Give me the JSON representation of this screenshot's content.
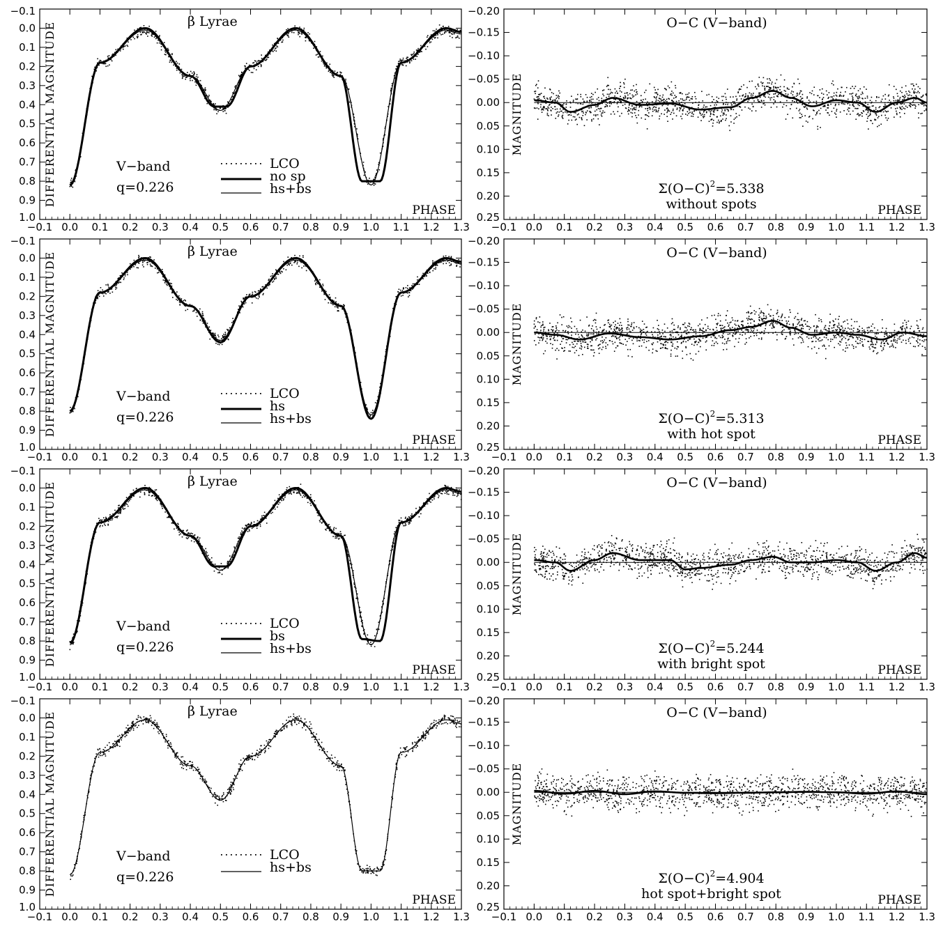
{
  "figure": {
    "left_column": {
      "star_label": "β Lyrae",
      "ylabel": "DIFFERENTIAL MAGNITUDE",
      "xlabel": "PHASE",
      "band_label": "V−band",
      "q_label": "q=0.226"
    },
    "right_column": {
      "title": "O−C (V−band)",
      "ylabel": "MAGNITUDE",
      "xlabel": "PHASE"
    }
  },
  "chart_data": [
    {
      "type": "scatter",
      "panel": "light-curve-1",
      "title": "β Lyrae",
      "xlabel": "PHASE",
      "ylabel": "DIFFERENTIAL MAGNITUDE",
      "xlim": [
        -0.1,
        1.3
      ],
      "ylim": [
        -0.1,
        1.0
      ],
      "y_inverted": true,
      "x_ticks": [
        "-0.1",
        "0.0",
        "0.1",
        "0.2",
        "0.3",
        "0.4",
        "0.5",
        "0.6",
        "0.7",
        "0.8",
        "0.9",
        "1.0",
        "1.1",
        "1.2",
        "1.3"
      ],
      "y_ticks": [
        "-0.1",
        "0.0",
        "0.1",
        "0.2",
        "0.3",
        "0.4",
        "0.5",
        "0.6",
        "0.7",
        "0.8",
        "0.9",
        "1.0"
      ],
      "annotations": [
        "V−band",
        "q=0.226"
      ],
      "legend": [
        "LCO",
        "no sp",
        "hs+bs"
      ],
      "series": [
        {
          "name": "LCO",
          "style": "points",
          "x": [
            0.0,
            0.1,
            0.25,
            0.4,
            0.5,
            0.6,
            0.75,
            0.9,
            1.0,
            1.1,
            1.25,
            1.3
          ],
          "y": [
            0.82,
            0.18,
            0.0,
            0.25,
            0.43,
            0.2,
            0.0,
            0.25,
            0.82,
            0.18,
            0.0,
            0.02
          ]
        },
        {
          "name": "no sp",
          "style": "thick",
          "x": [
            0.0,
            0.1,
            0.25,
            0.4,
            0.48,
            0.52,
            0.6,
            0.75,
            0.9,
            0.97,
            1.03,
            1.1,
            1.25,
            1.3
          ],
          "y": [
            0.82,
            0.18,
            0.0,
            0.25,
            0.41,
            0.41,
            0.2,
            0.0,
            0.25,
            0.8,
            0.8,
            0.18,
            0.0,
            0.02
          ]
        },
        {
          "name": "hs+bs",
          "style": "thin",
          "x": [
            0.0,
            0.1,
            0.25,
            0.4,
            0.5,
            0.6,
            0.75,
            0.9,
            1.0,
            1.1,
            1.25,
            1.3
          ],
          "y": [
            0.82,
            0.18,
            0.01,
            0.25,
            0.43,
            0.2,
            0.01,
            0.25,
            0.82,
            0.18,
            0.01,
            0.03
          ]
        }
      ]
    },
    {
      "type": "scatter",
      "panel": "residual-1",
      "title": "O−C (V−band)",
      "xlabel": "PHASE",
      "ylabel": "MAGNITUDE",
      "xlim": [
        -0.1,
        1.3
      ],
      "ylim": [
        -0.2,
        0.25
      ],
      "y_inverted": true,
      "x_ticks": [
        "-0.1",
        "0.0",
        "0.1",
        "0.2",
        "0.3",
        "0.4",
        "0.5",
        "0.6",
        "0.7",
        "0.8",
        "0.9",
        "1.0",
        "1.1",
        "1.2",
        "1.3"
      ],
      "y_ticks": [
        "-0.20",
        "-0.15",
        "-0.10",
        "-0.05",
        "0.00",
        "0.05",
        "0.10",
        "0.15",
        "0.20",
        "0.25"
      ],
      "sum_label": "Σ(O−C)",
      "sum_value": "=5.338",
      "caption": "without spots",
      "series": [
        {
          "name": "residual trend",
          "x": [
            0.0,
            0.07,
            0.12,
            0.2,
            0.26,
            0.35,
            0.45,
            0.55,
            0.65,
            0.72,
            0.79,
            0.85,
            0.92,
            1.0,
            1.07,
            1.13,
            1.2,
            1.26,
            1.3
          ],
          "y": [
            -0.005,
            0.0,
            0.02,
            0.005,
            -0.01,
            0.005,
            0.002,
            0.015,
            0.01,
            -0.01,
            -0.025,
            -0.01,
            0.008,
            -0.005,
            0.0,
            0.02,
            0.0,
            -0.01,
            0.0
          ]
        }
      ]
    },
    {
      "type": "scatter",
      "panel": "light-curve-2",
      "title": "β Lyrae",
      "xlabel": "PHASE",
      "ylabel": "DIFFERENTIAL MAGNITUDE",
      "xlim": [
        -0.1,
        1.3
      ],
      "ylim": [
        -0.1,
        1.0
      ],
      "y_inverted": true,
      "x_ticks": [
        "-0.1",
        "0.0",
        "0.1",
        "0.2",
        "0.3",
        "0.4",
        "0.5",
        "0.6",
        "0.7",
        "0.8",
        "0.9",
        "1.0",
        "1.1",
        "1.2",
        "1.3"
      ],
      "y_ticks": [
        "-0.1",
        "0.0",
        "0.1",
        "0.2",
        "0.3",
        "0.4",
        "0.5",
        "0.6",
        "0.7",
        "0.8",
        "0.9",
        "1.0"
      ],
      "annotations": [
        "V−band",
        "q=0.226"
      ],
      "legend": [
        "LCO",
        "hs",
        "hs+bs"
      ],
      "series": [
        {
          "name": "LCO",
          "style": "points",
          "x": [
            0.0,
            0.1,
            0.25,
            0.4,
            0.5,
            0.6,
            0.75,
            0.9,
            1.0,
            1.1,
            1.25,
            1.3
          ],
          "y": [
            0.82,
            0.18,
            0.0,
            0.25,
            0.43,
            0.2,
            0.0,
            0.25,
            0.82,
            0.18,
            0.0,
            0.02
          ]
        },
        {
          "name": "hs",
          "style": "thick",
          "x": [
            0.0,
            0.1,
            0.25,
            0.4,
            0.5,
            0.6,
            0.75,
            0.9,
            1.0,
            1.1,
            1.25,
            1.3
          ],
          "y": [
            0.8,
            0.18,
            0.0,
            0.25,
            0.44,
            0.2,
            0.0,
            0.25,
            0.84,
            0.18,
            0.0,
            0.02
          ]
        },
        {
          "name": "hs+bs",
          "style": "thin",
          "x": [
            0.0,
            0.1,
            0.25,
            0.4,
            0.5,
            0.6,
            0.75,
            0.9,
            1.0,
            1.1,
            1.25,
            1.3
          ],
          "y": [
            0.81,
            0.18,
            0.01,
            0.25,
            0.43,
            0.2,
            0.01,
            0.25,
            0.82,
            0.18,
            0.01,
            0.03
          ]
        }
      ]
    },
    {
      "type": "scatter",
      "panel": "residual-2",
      "title": "O−C (V−band)",
      "xlabel": "PHASE",
      "ylabel": "MAGNITUDE",
      "xlim": [
        -0.1,
        1.3
      ],
      "ylim": [
        -0.2,
        0.25
      ],
      "y_inverted": true,
      "x_ticks": [
        "-0.1",
        "0.0",
        "0.1",
        "0.2",
        "0.3",
        "0.4",
        "0.5",
        "0.6",
        "0.7",
        "0.8",
        "0.9",
        "1.0",
        "1.1",
        "1.2",
        "1.3"
      ],
      "y_ticks": [
        "-0.20",
        "-0.15",
        "-0.10",
        "-0.05",
        "0.00",
        "0.05",
        "0.10",
        "0.15",
        "0.20",
        "0.25"
      ],
      "sum_label": "Σ(O−C)",
      "sum_value": "=5.313",
      "caption": "with hot spot",
      "series": [
        {
          "name": "residual trend",
          "x": [
            0.0,
            0.07,
            0.15,
            0.25,
            0.35,
            0.45,
            0.55,
            0.65,
            0.72,
            0.79,
            0.85,
            0.92,
            1.0,
            1.07,
            1.15,
            1.22,
            1.3
          ],
          "y": [
            0.0,
            0.005,
            0.015,
            0.002,
            0.01,
            0.015,
            0.008,
            -0.005,
            -0.012,
            -0.025,
            -0.01,
            0.005,
            0.0,
            0.005,
            0.015,
            0.0,
            0.008
          ]
        }
      ]
    },
    {
      "type": "scatter",
      "panel": "light-curve-3",
      "title": "β Lyrae",
      "xlabel": "PHASE",
      "ylabel": "DIFFERENTIAL MAGNITUDE",
      "xlim": [
        -0.1,
        1.3
      ],
      "ylim": [
        -0.1,
        1.0
      ],
      "y_inverted": true,
      "x_ticks": [
        "-0.1",
        "0.0",
        "0.1",
        "0.2",
        "0.3",
        "0.4",
        "0.5",
        "0.6",
        "0.7",
        "0.8",
        "0.9",
        "1.0",
        "1.1",
        "1.2",
        "1.3"
      ],
      "y_ticks": [
        "-0.1",
        "0.0",
        "0.1",
        "0.2",
        "0.3",
        "0.4",
        "0.5",
        "0.6",
        "0.7",
        "0.8",
        "0.9",
        "1.0"
      ],
      "annotations": [
        "V−band",
        "q=0.226"
      ],
      "legend": [
        "LCO",
        "bs",
        "hs+bs"
      ],
      "series": [
        {
          "name": "LCO",
          "style": "points",
          "x": [
            0.0,
            0.1,
            0.25,
            0.4,
            0.5,
            0.6,
            0.75,
            0.9,
            1.0,
            1.1,
            1.25,
            1.3
          ],
          "y": [
            0.82,
            0.18,
            0.0,
            0.25,
            0.43,
            0.2,
            0.0,
            0.25,
            0.82,
            0.18,
            0.0,
            0.02
          ]
        },
        {
          "name": "bs",
          "style": "thick",
          "x": [
            0.0,
            0.1,
            0.25,
            0.4,
            0.48,
            0.52,
            0.6,
            0.75,
            0.9,
            0.97,
            1.03,
            1.1,
            1.25,
            1.3
          ],
          "y": [
            0.81,
            0.18,
            0.0,
            0.25,
            0.41,
            0.41,
            0.2,
            0.0,
            0.25,
            0.79,
            0.8,
            0.18,
            0.0,
            0.02
          ]
        },
        {
          "name": "hs+bs",
          "style": "thin",
          "x": [
            0.0,
            0.1,
            0.25,
            0.4,
            0.5,
            0.6,
            0.75,
            0.9,
            1.0,
            1.1,
            1.25,
            1.3
          ],
          "y": [
            0.82,
            0.18,
            0.01,
            0.25,
            0.43,
            0.2,
            0.01,
            0.25,
            0.82,
            0.18,
            0.01,
            0.03
          ]
        }
      ]
    },
    {
      "type": "scatter",
      "panel": "residual-3",
      "title": "O−C (V−band)",
      "xlabel": "PHASE",
      "ylabel": "MAGNITUDE",
      "xlim": [
        -0.1,
        1.3
      ],
      "ylim": [
        -0.2,
        0.25
      ],
      "y_inverted": true,
      "x_ticks": [
        "-0.1",
        "0.0",
        "0.1",
        "0.2",
        "0.3",
        "0.4",
        "0.5",
        "0.6",
        "0.7",
        "0.8",
        "0.9",
        "1.0",
        "1.1",
        "1.2",
        "1.3"
      ],
      "y_ticks": [
        "-0.20",
        "-0.15",
        "-0.10",
        "-0.05",
        "0.00",
        "0.05",
        "0.10",
        "0.15",
        "0.20",
        "0.25"
      ],
      "sum_label": "Σ(O−C)",
      "sum_value": "=5.244",
      "caption": "with bright spot",
      "series": [
        {
          "name": "residual trend",
          "x": [
            0.0,
            0.07,
            0.12,
            0.2,
            0.26,
            0.35,
            0.45,
            0.5,
            0.55,
            0.65,
            0.72,
            0.79,
            0.85,
            0.92,
            1.0,
            1.07,
            1.13,
            1.2,
            1.26,
            1.3
          ],
          "y": [
            -0.005,
            0.0,
            0.018,
            -0.005,
            -0.02,
            -0.005,
            -0.005,
            0.015,
            0.012,
            0.005,
            -0.005,
            -0.012,
            0.0,
            0.0,
            -0.005,
            0.0,
            0.018,
            0.0,
            -0.02,
            -0.01
          ]
        }
      ]
    },
    {
      "type": "scatter",
      "panel": "light-curve-4",
      "title": "β Lyrae",
      "xlabel": "PHASE",
      "ylabel": "DIFFERENTIAL MAGNITUDE",
      "xlim": [
        -0.1,
        1.3
      ],
      "ylim": [
        -0.1,
        1.0
      ],
      "y_inverted": true,
      "x_ticks": [
        "-0.1",
        "0.0",
        "0.1",
        "0.2",
        "0.3",
        "0.4",
        "0.5",
        "0.6",
        "0.7",
        "0.8",
        "0.9",
        "1.0",
        "1.1",
        "1.2",
        "1.3"
      ],
      "y_ticks": [
        "-0.1",
        "0.0",
        "0.1",
        "0.2",
        "0.3",
        "0.4",
        "0.5",
        "0.6",
        "0.7",
        "0.8",
        "0.9",
        "1.0"
      ],
      "annotations": [
        "V−band",
        "q=0.226"
      ],
      "legend": [
        "LCO",
        "hs+bs"
      ],
      "series": [
        {
          "name": "LCO",
          "style": "points",
          "x": [
            0.0,
            0.1,
            0.25,
            0.4,
            0.5,
            0.6,
            0.75,
            0.9,
            1.0,
            1.1,
            1.25,
            1.3
          ],
          "y": [
            0.82,
            0.18,
            0.0,
            0.25,
            0.43,
            0.2,
            0.0,
            0.25,
            0.82,
            0.18,
            0.0,
            0.02
          ]
        },
        {
          "name": "hs+bs",
          "style": "thin",
          "x": [
            0.0,
            0.1,
            0.25,
            0.4,
            0.5,
            0.6,
            0.75,
            0.9,
            0.97,
            1.03,
            1.1,
            1.25,
            1.3
          ],
          "y": [
            0.82,
            0.18,
            0.01,
            0.25,
            0.43,
            0.2,
            0.01,
            0.25,
            0.8,
            0.8,
            0.18,
            0.01,
            0.03
          ]
        }
      ]
    },
    {
      "type": "scatter",
      "panel": "residual-4",
      "title": "O−C (V−band)",
      "xlabel": "PHASE",
      "ylabel": "MAGNITUDE",
      "xlim": [
        -0.1,
        1.3
      ],
      "ylim": [
        -0.2,
        0.25
      ],
      "y_inverted": true,
      "x_ticks": [
        "-0.1",
        "0.0",
        "0.1",
        "0.2",
        "0.3",
        "0.4",
        "0.5",
        "0.6",
        "0.7",
        "0.8",
        "0.9",
        "1.0",
        "1.1",
        "1.2",
        "1.3"
      ],
      "y_ticks": [
        "-0.20",
        "-0.15",
        "-0.10",
        "-0.05",
        "0.00",
        "0.05",
        "0.10",
        "0.15",
        "0.20",
        "0.25"
      ],
      "sum_label": "Σ(O−C)",
      "sum_value": "=4.904",
      "caption": "hot spot+bright spot",
      "series": [
        {
          "name": "residual trend",
          "x": [
            0.0,
            0.1,
            0.2,
            0.3,
            0.4,
            0.5,
            0.6,
            0.7,
            0.8,
            0.9,
            1.0,
            1.1,
            1.2,
            1.3
          ],
          "y": [
            -0.003,
            0.003,
            -0.003,
            0.004,
            -0.002,
            0.001,
            0.002,
            0.001,
            0.0,
            -0.001,
            0.0,
            0.003,
            -0.002,
            0.004
          ]
        }
      ]
    }
  ]
}
